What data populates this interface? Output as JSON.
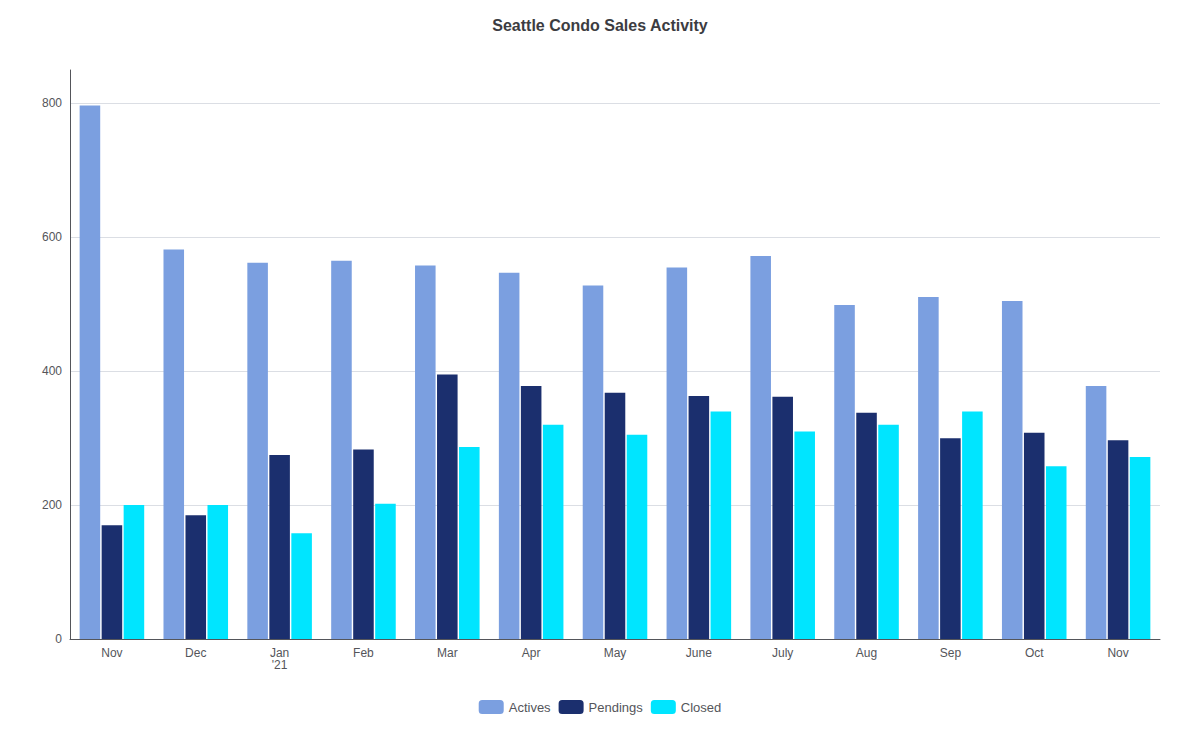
{
  "chart_data": {
    "type": "bar",
    "title": "Seattle Condo Sales Activity",
    "categories": [
      "Nov",
      "Dec",
      "Jan\n'21",
      "Feb",
      "Mar",
      "Apr",
      "May",
      "June",
      "July",
      "Aug",
      "Sep",
      "Oct",
      "Nov"
    ],
    "series": [
      {
        "name": "Actives",
        "color": "#7B9FE0",
        "values": [
          797,
          582,
          562,
          565,
          558,
          547,
          528,
          555,
          572,
          499,
          511,
          505,
          378
        ]
      },
      {
        "name": "Pendings",
        "color": "#1B2F6E",
        "values": [
          170,
          185,
          275,
          283,
          395,
          378,
          368,
          363,
          362,
          338,
          300,
          308,
          297
        ]
      },
      {
        "name": "Closed",
        "color": "#00E5FF",
        "values": [
          200,
          200,
          158,
          202,
          287,
          320,
          305,
          340,
          310,
          320,
          340,
          258,
          272
        ]
      }
    ],
    "ylim": [
      0,
      850
    ],
    "yticks": [
      0,
      200,
      400,
      600,
      800
    ],
    "grid": true,
    "legend": "bottom"
  }
}
